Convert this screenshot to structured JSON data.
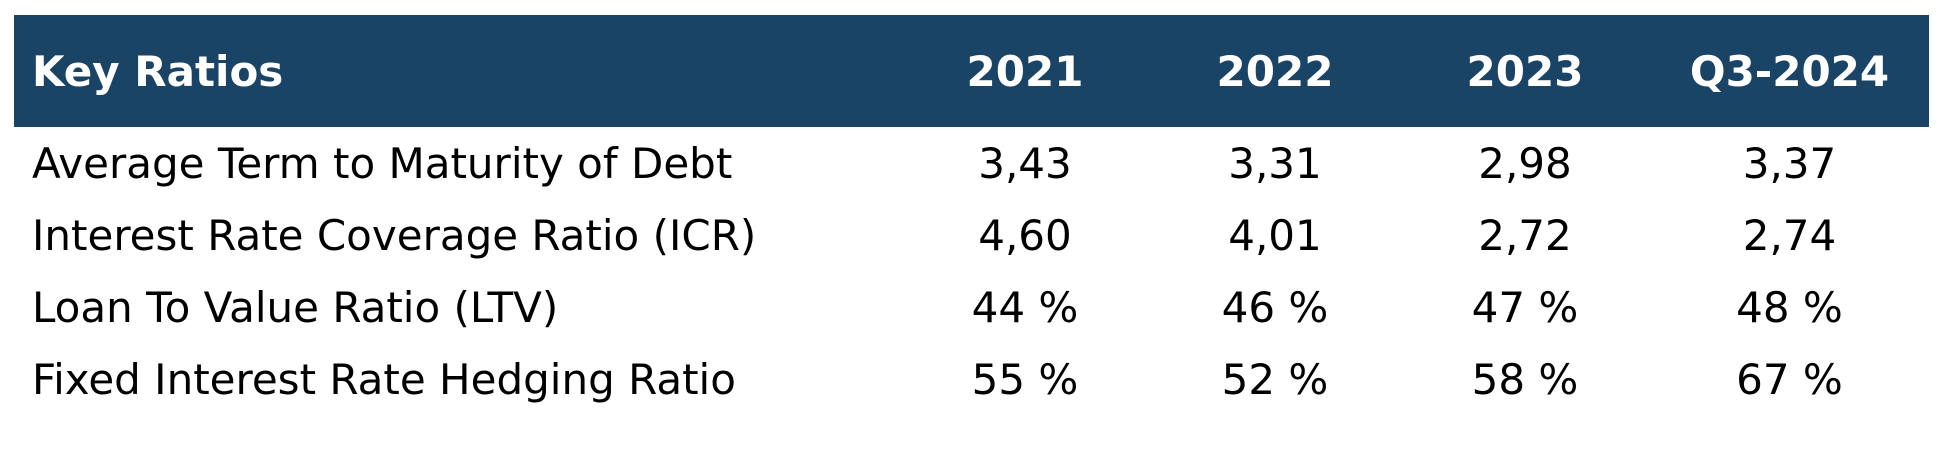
{
  "table": {
    "header": {
      "label": "Key Ratios",
      "columns": [
        "2021",
        "2022",
        "2023",
        "Q3-2024"
      ]
    },
    "rows": [
      {
        "label": "Average Term to Maturity of Debt",
        "values": [
          "3,43",
          "3,31",
          "2,98",
          "3,37"
        ]
      },
      {
        "label": "Interest Rate Coverage Ratio (ICR)",
        "values": [
          "4,60",
          "4,01",
          "2,72",
          "2,74"
        ]
      },
      {
        "label": "Loan To Value Ratio (LTV)",
        "values": [
          "44 %",
          "46 %",
          "47 %",
          "48 %"
        ]
      },
      {
        "label": "Fixed Interest Rate Hedging Ratio",
        "values": [
          "55 %",
          "52 %",
          "58 %",
          "67 %"
        ]
      }
    ]
  },
  "colors": {
    "header_background": "#1a4466",
    "header_text": "#ffffff",
    "body_text": "#000000"
  }
}
